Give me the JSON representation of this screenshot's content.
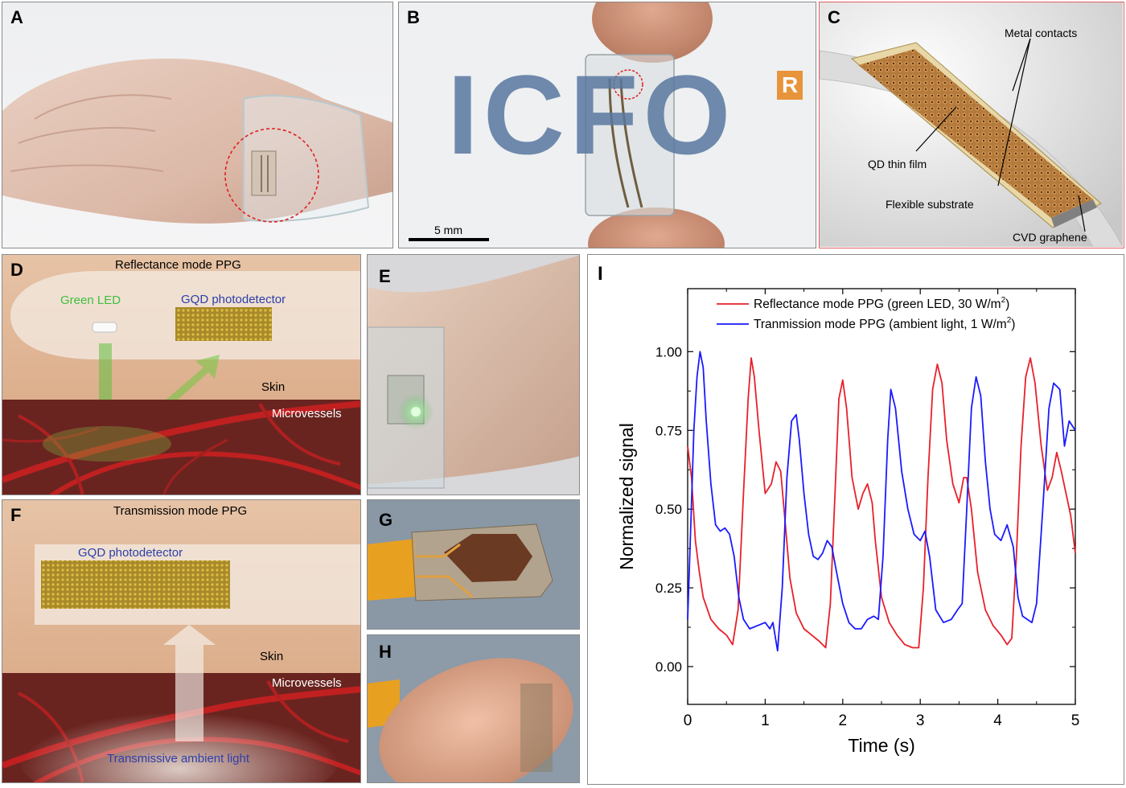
{
  "panel_labels": [
    "A",
    "B",
    "C",
    "D",
    "E",
    "F",
    "G",
    "H",
    "I"
  ],
  "panel_b": {
    "scale_bar": "5 mm",
    "logo_text": "ICFO",
    "logo_mark": "R"
  },
  "panel_c": {
    "labels": [
      "Metal contacts",
      "QD thin film",
      "Flexible substrate",
      "CVD graphene"
    ]
  },
  "panel_d": {
    "title": "Reflectance mode PPG",
    "led": "Green LED",
    "detector": "GQD photodetector",
    "skin": "Skin",
    "microvessels": "Microvessels"
  },
  "panel_f": {
    "title": "Transmission mode PPG",
    "detector": "GQD photodetector",
    "skin": "Skin",
    "microvessels": "Microvessels",
    "ambient": "Transmissive ambient light"
  },
  "colors": {
    "red": "#e8202a",
    "blue": "#1a1aff",
    "green_led": "#3fbf3f",
    "detector_blue": "#2b3fa8",
    "panel_c_border": "#e06060"
  },
  "chart_data": {
    "type": "line",
    "xlabel": "Time (s)",
    "ylabel": "Normalized signal",
    "xlim": [
      0,
      5
    ],
    "ylim": [
      -0.12,
      1.2
    ],
    "xticks": [
      0,
      1,
      2,
      3,
      4,
      5
    ],
    "yticks": [
      0.0,
      0.25,
      0.5,
      0.75,
      1.0
    ],
    "ytick_labels": [
      "0.00",
      "0.25",
      "0.50",
      "0.75",
      "1.00"
    ],
    "legend_position": "top",
    "series": [
      {
        "name": "Reflectance mode PPG (green LED, 30 W/m²)",
        "legend_text": "Reflectance mode PPG (green LED, 30  W/m",
        "legend_sup": "2",
        "legend_tail": ")",
        "color": "#e8202a",
        "x": [
          0.0,
          0.05,
          0.1,
          0.15,
          0.2,
          0.3,
          0.4,
          0.5,
          0.58,
          0.65,
          0.72,
          0.78,
          0.82,
          0.86,
          0.92,
          1.0,
          1.08,
          1.14,
          1.2,
          1.26,
          1.32,
          1.4,
          1.5,
          1.6,
          1.7,
          1.78,
          1.84,
          1.9,
          1.95,
          2.0,
          2.05,
          2.12,
          2.2,
          2.26,
          2.32,
          2.38,
          2.42,
          2.5,
          2.6,
          2.7,
          2.8,
          2.9,
          2.98,
          3.04,
          3.1,
          3.16,
          3.22,
          3.28,
          3.34,
          3.42,
          3.5,
          3.56,
          3.6,
          3.66,
          3.74,
          3.84,
          3.94,
          4.04,
          4.12,
          4.18,
          4.24,
          4.3,
          4.36,
          4.42,
          4.48,
          4.56,
          4.64,
          4.7,
          4.76,
          4.82,
          4.88,
          4.94,
          5.0
        ],
        "y": [
          0.7,
          0.6,
          0.4,
          0.3,
          0.22,
          0.15,
          0.12,
          0.1,
          0.07,
          0.18,
          0.55,
          0.85,
          0.98,
          0.92,
          0.75,
          0.55,
          0.58,
          0.65,
          0.62,
          0.45,
          0.28,
          0.17,
          0.12,
          0.1,
          0.08,
          0.06,
          0.2,
          0.55,
          0.85,
          0.91,
          0.82,
          0.6,
          0.5,
          0.55,
          0.58,
          0.52,
          0.4,
          0.22,
          0.14,
          0.1,
          0.07,
          0.06,
          0.06,
          0.25,
          0.6,
          0.88,
          0.96,
          0.9,
          0.72,
          0.58,
          0.52,
          0.6,
          0.6,
          0.5,
          0.3,
          0.18,
          0.13,
          0.1,
          0.07,
          0.09,
          0.35,
          0.7,
          0.92,
          0.98,
          0.9,
          0.7,
          0.56,
          0.6,
          0.68,
          0.62,
          0.55,
          0.48,
          0.36
        ]
      },
      {
        "name": "Tranmission mode PPG (ambient light, 1 W/m²)",
        "legend_text": "Tranmission mode PPG (ambient  light, 1 W/m",
        "legend_sup": "2",
        "legend_tail": ")",
        "color": "#1a1aff",
        "x": [
          0.0,
          0.04,
          0.08,
          0.12,
          0.16,
          0.2,
          0.24,
          0.3,
          0.36,
          0.42,
          0.48,
          0.54,
          0.6,
          0.66,
          0.72,
          0.8,
          0.9,
          1.0,
          1.06,
          1.1,
          1.16,
          1.22,
          1.28,
          1.34,
          1.4,
          1.44,
          1.5,
          1.56,
          1.62,
          1.68,
          1.74,
          1.8,
          1.86,
          1.92,
          2.0,
          2.08,
          2.16,
          2.24,
          2.32,
          2.4,
          2.46,
          2.52,
          2.58,
          2.62,
          2.68,
          2.76,
          2.84,
          2.92,
          3.0,
          3.06,
          3.12,
          3.2,
          3.3,
          3.4,
          3.48,
          3.54,
          3.6,
          3.66,
          3.72,
          3.78,
          3.84,
          3.9,
          3.96,
          4.04,
          4.12,
          4.2,
          4.26,
          4.32,
          4.38,
          4.44,
          4.5,
          4.58,
          4.66,
          4.72,
          4.8,
          4.86,
          4.92,
          5.0
        ],
        "y": [
          0.15,
          0.45,
          0.75,
          0.92,
          1.0,
          0.95,
          0.78,
          0.58,
          0.45,
          0.43,
          0.44,
          0.42,
          0.35,
          0.22,
          0.15,
          0.12,
          0.13,
          0.14,
          0.12,
          0.14,
          0.05,
          0.25,
          0.6,
          0.78,
          0.8,
          0.72,
          0.55,
          0.42,
          0.35,
          0.34,
          0.36,
          0.4,
          0.38,
          0.3,
          0.2,
          0.14,
          0.12,
          0.12,
          0.15,
          0.16,
          0.15,
          0.35,
          0.72,
          0.88,
          0.82,
          0.62,
          0.5,
          0.42,
          0.4,
          0.43,
          0.35,
          0.18,
          0.14,
          0.15,
          0.18,
          0.2,
          0.5,
          0.82,
          0.92,
          0.86,
          0.65,
          0.5,
          0.42,
          0.4,
          0.45,
          0.38,
          0.22,
          0.16,
          0.15,
          0.14,
          0.2,
          0.5,
          0.82,
          0.9,
          0.88,
          0.7,
          0.78,
          0.75
        ]
      }
    ]
  }
}
